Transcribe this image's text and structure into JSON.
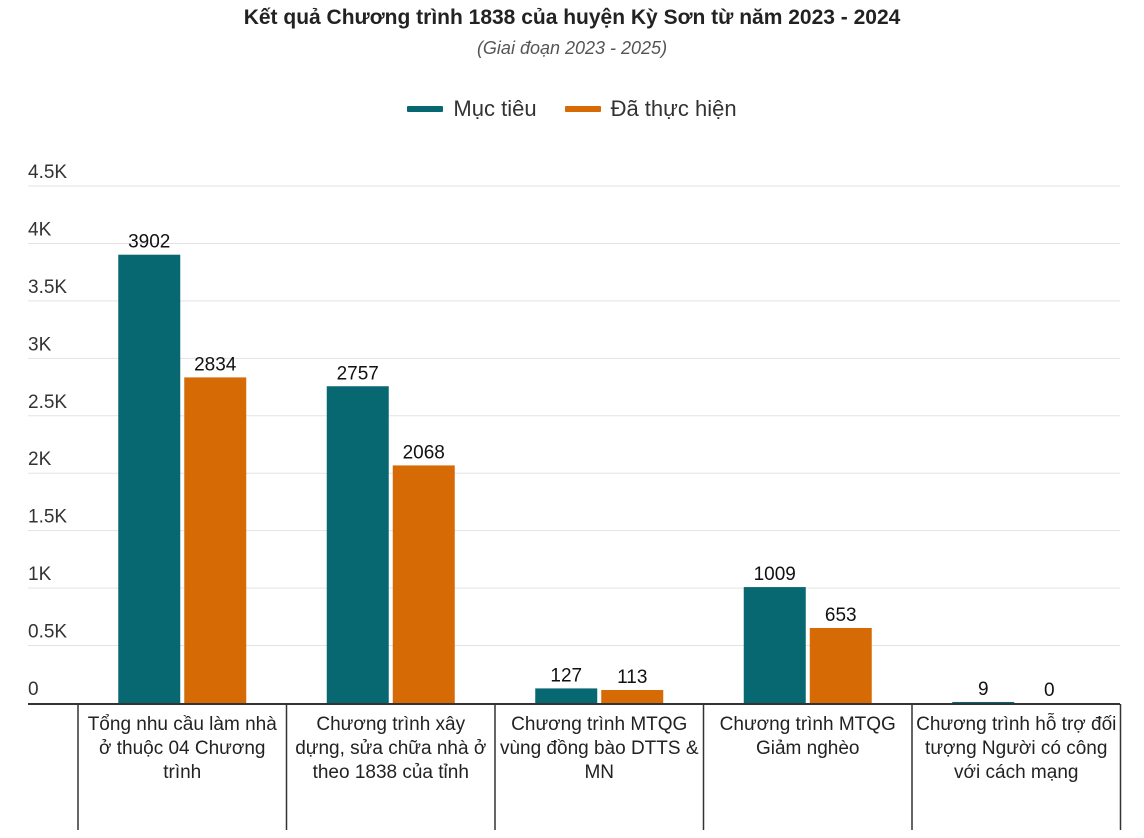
{
  "title": "Kết quả Chương trình 1838 của huyện Kỳ Sơn từ năm 2023 - 2024",
  "subtitle": "(Giai đoạn 2023 - 2025)",
  "chart_data": {
    "type": "bar",
    "title": "Kết quả Chương trình 1838 của huyện Kỳ Sơn từ năm 2023 - 2024",
    "subtitle": "(Giai đoạn 2023 - 2025)",
    "categories": [
      "Tổng nhu cầu làm nhà ở thuộc 04 Chương trình",
      "Chương trình xây dựng, sửa chữa nhà ở theo 1838 của tỉnh",
      "Chương trình MTQG vùng đồng bào DTTS & MN",
      "Chương trình MTQG Giảm nghèo",
      "Chương trình hỗ trợ đối tượng Người có công với cách mạng"
    ],
    "series": [
      {
        "name": "Mục tiêu",
        "color": "#076872",
        "values": [
          3902,
          2757,
          127,
          1009,
          9
        ]
      },
      {
        "name": "Đã thực hiện",
        "color": "#d66b06",
        "values": [
          2834,
          2068,
          113,
          653,
          0
        ]
      }
    ],
    "ylim": [
      0,
      4500
    ],
    "yticks": [
      0,
      500,
      1000,
      1500,
      2000,
      2500,
      3000,
      3500,
      4000,
      4500
    ],
    "ytick_labels": [
      "0",
      "0.5K",
      "1K",
      "1.5K",
      "2K",
      "2.5K",
      "3K",
      "3.5K",
      "4K",
      "4.5K"
    ],
    "legend": "top-center",
    "grid": true,
    "xlabel": "",
    "ylabel": ""
  }
}
